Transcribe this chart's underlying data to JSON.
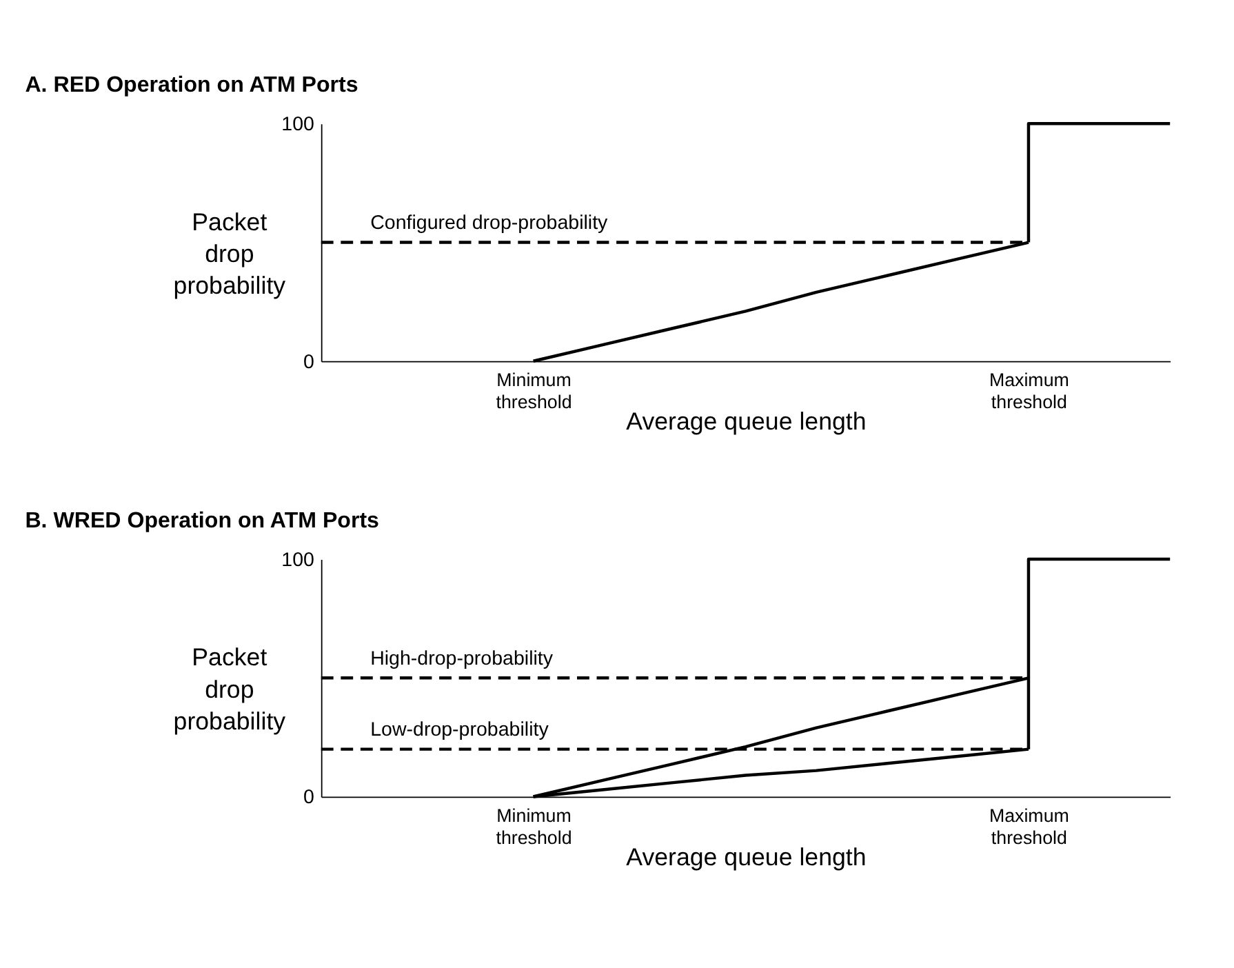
{
  "chart_data": [
    {
      "type": "line",
      "title": "A.  RED Operation on ATM Ports",
      "xlabel": "Average queue length",
      "ylabel": "Packet drop probability",
      "categories": [
        null,
        null,
        null,
        "Minimum threshold",
        null,
        null,
        null,
        null,
        null,
        null,
        "Maximum threshold",
        null,
        null
      ],
      "ylim": [
        0,
        100
      ],
      "yticks": [
        0,
        100
      ],
      "grid": false,
      "marker": "none",
      "series": [
        {
          "name": "Configured drop-probability",
          "color": "#000000",
          "line_style": "dashed",
          "values": [
            50,
            50,
            50,
            50,
            50,
            50,
            50,
            50,
            50,
            50,
            50,
            null,
            null
          ]
        },
        {
          "color": "#000000",
          "line_style": "solid",
          "values": [
            null,
            null,
            null,
            0,
            7,
            14,
            21,
            29,
            36,
            43,
            50,
            null,
            null
          ]
        },
        {
          "type": "step",
          "color": "#000000",
          "line_style": "solid",
          "values": [
            null,
            null,
            null,
            null,
            null,
            null,
            null,
            null,
            null,
            null,
            50,
            100,
            100
          ]
        }
      ]
    },
    {
      "type": "line",
      "title": "B.  WRED Operation on ATM Ports",
      "xlabel": "Average queue length",
      "ylabel": "Packet drop probability",
      "categories": [
        null,
        null,
        null,
        "Minimum threshold",
        null,
        null,
        null,
        null,
        null,
        null,
        "Maximum threshold",
        null,
        null
      ],
      "ylim": [
        0,
        100
      ],
      "yticks": [
        0,
        100
      ],
      "grid": false,
      "marker": "none",
      "series": [
        {
          "name": "High-drop-probability",
          "color": "#000000",
          "line_style": "dashed",
          "values": [
            50,
            50,
            50,
            50,
            50,
            50,
            50,
            50,
            50,
            50,
            50,
            null,
            null
          ]
        },
        {
          "name": "Low-drop-probability",
          "color": "#000000",
          "line_style": "dashed",
          "values": [
            20,
            20,
            20,
            20,
            20,
            20,
            20,
            20,
            20,
            20,
            20,
            null,
            null
          ]
        },
        {
          "color": "#000000",
          "line_style": "solid",
          "values": [
            null,
            null,
            null,
            0,
            7,
            14,
            21,
            29,
            36,
            43,
            50,
            null,
            null
          ]
        },
        {
          "color": "#000000",
          "line_style": "solid",
          "values": [
            null,
            null,
            null,
            0,
            3,
            6,
            9,
            11,
            14,
            17,
            20,
            null,
            null
          ]
        },
        {
          "type": "step",
          "color": "#000000",
          "line_style": "solid",
          "values": [
            null,
            null,
            null,
            null,
            null,
            null,
            null,
            null,
            null,
            null,
            20,
            100,
            100
          ]
        }
      ]
    }
  ]
}
